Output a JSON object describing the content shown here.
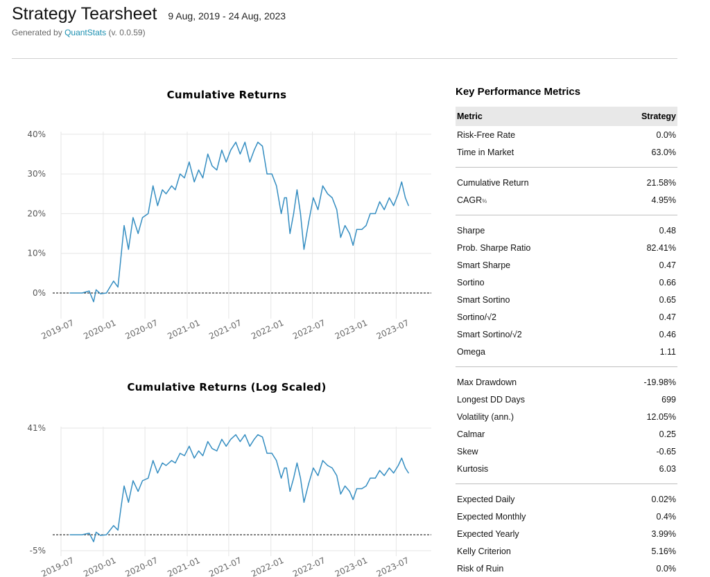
{
  "header": {
    "title": "Strategy Tearsheet",
    "date_range": "9 Aug, 2019 - 24 Aug, 2023",
    "generated_prefix": "Generated by",
    "generator_link": "QuantStats",
    "generator_version": "(v. 0.0.59)"
  },
  "metrics": {
    "title": "Key Performance Metrics",
    "col_metric": "Metric",
    "col_strategy": "Strategy",
    "groups": [
      [
        [
          "Risk-Free Rate",
          "0.0%"
        ],
        [
          "Time in Market",
          "63.0%"
        ]
      ],
      [
        [
          "Cumulative Return",
          "21.58%"
        ],
        [
          "CAGR",
          "4.95%"
        ]
      ],
      [
        [
          "Sharpe",
          "0.48"
        ],
        [
          "Prob. Sharpe Ratio",
          "82.41%"
        ],
        [
          "Smart Sharpe",
          "0.47"
        ],
        [
          "Sortino",
          "0.66"
        ],
        [
          "Smart Sortino",
          "0.65"
        ],
        [
          "Sortino/√2",
          "0.47"
        ],
        [
          "Smart Sortino/√2",
          "0.46"
        ],
        [
          "Omega",
          "1.11"
        ]
      ],
      [
        [
          "Max Drawdown",
          "-19.98%"
        ],
        [
          "Longest DD Days",
          "699"
        ],
        [
          "Volatility (ann.)",
          "12.05%"
        ],
        [
          "Calmar",
          "0.25"
        ],
        [
          "Skew",
          "-0.65"
        ],
        [
          "Kurtosis",
          "6.03"
        ]
      ],
      [
        [
          "Expected Daily",
          "0.02%"
        ],
        [
          "Expected Monthly",
          "0.4%"
        ],
        [
          "Expected Yearly",
          "3.99%"
        ],
        [
          "Kelly Criterion",
          "5.16%"
        ],
        [
          "Risk of Ruin",
          "0.0%"
        ]
      ]
    ],
    "cagr_suffix": "%"
  },
  "colors": {
    "line": "#348dc1",
    "accent_link": "#1a8fb0",
    "header_bg": "#e8e8e8"
  },
  "chart_data": [
    {
      "type": "line",
      "title": "Cumulative Returns",
      "ylabel": "",
      "xlabel": "",
      "ylim": [
        -3,
        43
      ],
      "yticks": [
        0,
        10,
        20,
        30,
        40
      ],
      "ytick_labels": [
        "0%",
        "10%",
        "20%",
        "30%",
        "40%"
      ],
      "xticks": [
        "2019-07",
        "2020-01",
        "2020-07",
        "2021-01",
        "2021-07",
        "2022-01",
        "2022-07",
        "2023-01",
        "2023-07"
      ],
      "grid": true,
      "baseline": 0,
      "series": [
        {
          "x": [
            "2019-08-09",
            "2019-10-01",
            "2019-11-01",
            "2019-11-20",
            "2019-12-01",
            "2019-12-20",
            "2020-01-15",
            "2020-02-15",
            "2020-03-05",
            "2020-03-20",
            "2020-04-01",
            "2020-04-20",
            "2020-05-10",
            "2020-06-01",
            "2020-06-20",
            "2020-07-15",
            "2020-08-05",
            "2020-08-25",
            "2020-09-15",
            "2020-10-01",
            "2020-10-25",
            "2020-11-10",
            "2020-12-01",
            "2020-12-20",
            "2021-01-10",
            "2021-02-01",
            "2021-02-20",
            "2021-03-10",
            "2021-04-01",
            "2021-04-20",
            "2021-05-10",
            "2021-06-01",
            "2021-06-20",
            "2021-07-10",
            "2021-08-01",
            "2021-08-20",
            "2021-09-10",
            "2021-10-01",
            "2021-10-20",
            "2021-11-05",
            "2021-11-25",
            "2021-12-15",
            "2022-01-05",
            "2022-01-25",
            "2022-02-15",
            "2022-03-01",
            "2022-03-10",
            "2022-03-25",
            "2022-04-10",
            "2022-04-25",
            "2022-05-10",
            "2022-05-25",
            "2022-06-15",
            "2022-07-05",
            "2022-07-25",
            "2022-08-15",
            "2022-09-05",
            "2022-09-25",
            "2022-10-15",
            "2022-11-01",
            "2022-11-20",
            "2022-12-10",
            "2022-12-25",
            "2023-01-10",
            "2023-02-01",
            "2023-02-20",
            "2023-03-10",
            "2023-04-01",
            "2023-04-20",
            "2023-05-10",
            "2023-06-01",
            "2023-06-20",
            "2023-07-10",
            "2023-07-25",
            "2023-08-10",
            "2023-08-24"
          ],
          "values": [
            0,
            0,
            0.5,
            -2.2,
            0.8,
            -0.2,
            0,
            3,
            1.5,
            10,
            17,
            11,
            19,
            15,
            19,
            20,
            27,
            22,
            26,
            25,
            27,
            26,
            30,
            29,
            33,
            28,
            31,
            29,
            35,
            32,
            31,
            36,
            33,
            36,
            38,
            35,
            38,
            33,
            36,
            38,
            37,
            30,
            30,
            27,
            20,
            24,
            24,
            15,
            20,
            26,
            20,
            11,
            18,
            24,
            21,
            27,
            25,
            24,
            21,
            14,
            17,
            15,
            12,
            16,
            16,
            17,
            20,
            20,
            23,
            21,
            24,
            22,
            25,
            28,
            24,
            22
          ]
        }
      ]
    },
    {
      "type": "line",
      "title": "Cumulative Returns (Log Scaled)",
      "ylabel": "",
      "xlabel": "",
      "ylim": [
        -5,
        41
      ],
      "yticks": [
        -5,
        41
      ],
      "ytick_labels": [
        "-5%",
        "41%"
      ],
      "log_scale": true,
      "xticks": [
        "2019-07",
        "2020-01",
        "2020-07",
        "2021-01",
        "2021-07",
        "2022-01",
        "2022-07",
        "2023-01",
        "2023-07"
      ],
      "grid": true,
      "baseline": 0
    }
  ]
}
